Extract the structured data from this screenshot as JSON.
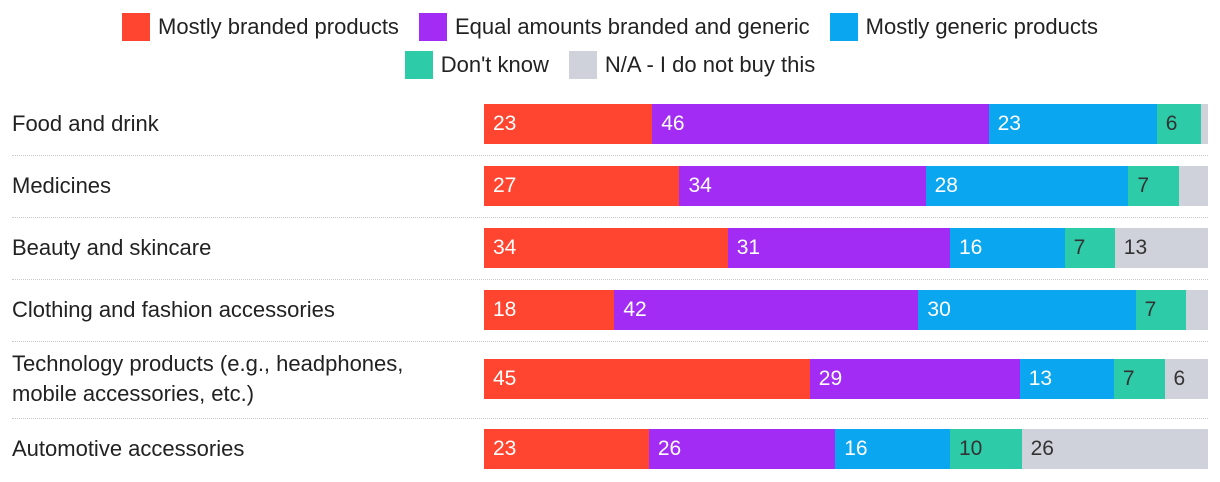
{
  "chart_data": {
    "type": "bar",
    "orientation": "horizontal",
    "stacked": true,
    "legend_position": "top",
    "series": [
      {
        "name": "Mostly branded products",
        "color": "#ff4530",
        "values": [
          23,
          27,
          34,
          18,
          45,
          23
        ]
      },
      {
        "name": "Equal amounts branded and generic",
        "color": "#a32cf4",
        "values": [
          46,
          34,
          31,
          42,
          29,
          26
        ]
      },
      {
        "name": "Mostly generic products",
        "color": "#0aa6ef",
        "values": [
          23,
          28,
          16,
          30,
          13,
          16
        ]
      },
      {
        "name": "Don't know",
        "color": "#2ecba9",
        "values": [
          6,
          7,
          7,
          7,
          7,
          10
        ]
      },
      {
        "name": "N/A - I do not buy this",
        "color": "#cfd1db",
        "values": [
          1,
          4,
          13,
          3,
          6,
          26
        ]
      }
    ],
    "data_labels": [
      [
        "23",
        "46",
        "23",
        "6",
        ""
      ],
      [
        "27",
        "34",
        "28",
        "7",
        ""
      ],
      [
        "34",
        "31",
        "16",
        "7",
        "13"
      ],
      [
        "18",
        "42",
        "30",
        "7",
        ""
      ],
      [
        "45",
        "29",
        "13",
        "7",
        "6"
      ],
      [
        "23",
        "26",
        "16",
        "10",
        "26"
      ]
    ],
    "categories": [
      [
        "Food and drink"
      ],
      [
        "Medicines"
      ],
      [
        "Beauty and skincare"
      ],
      [
        "Clothing and fashion accessories"
      ],
      [
        "Technology products (e.g., headphones,",
        "mobile accessories, etc.)"
      ],
      [
        "Automotive accessories"
      ]
    ]
  }
}
